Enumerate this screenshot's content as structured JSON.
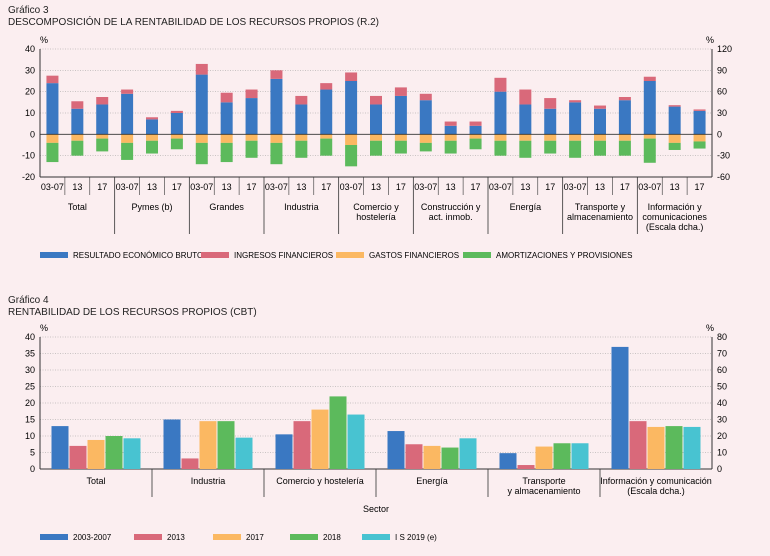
{
  "chart3": {
    "label": "Gráfico 3",
    "title": "DESCOMPOSICIÓN DE LA RENTABILIDAD DE LOS RECURSOS PROPIOS (R.2)",
    "left_unit": "%",
    "right_unit": "%"
  },
  "chart4": {
    "label": "Gráfico 4",
    "title": "RENTABILIDAD DE LOS RECURSOS PROPIOS (CBT)",
    "left_unit": "%",
    "right_unit": "%"
  },
  "colors": {
    "blue": "#3a78c2",
    "red": "#d9697a",
    "orange": "#fbb862",
    "green": "#5cba5c",
    "cyan": "#48c3d1",
    "axis": "#333333",
    "grid": "#999999"
  },
  "chart_data": [
    {
      "type": "bar",
      "stacked": true,
      "title": "DESCOMPOSICIÓN DE LA RENTABILIDAD DE LOS RECURSOS PROPIOS (R.2)",
      "ylim": [
        -20,
        40
      ],
      "yticks": [
        "40",
        "30",
        "20",
        "10",
        "0",
        "-10",
        "-20"
      ],
      "y2lim": [
        -60,
        120
      ],
      "y2ticks": [
        "120",
        "90",
        "60",
        "30",
        "0",
        "-30",
        "-60"
      ],
      "groups": [
        {
          "label": "Total",
          "labels": [
            "03-07",
            "13",
            "17"
          ],
          "right_axis": false
        },
        {
          "label": "Pymes (b)",
          "labels": [
            "03-07",
            "13",
            "17"
          ],
          "right_axis": false
        },
        {
          "label": "Grandes",
          "labels": [
            "03-07",
            "13",
            "17"
          ],
          "right_axis": false
        },
        {
          "label": "Industria",
          "labels": [
            "03-07",
            "13",
            "17"
          ],
          "right_axis": false
        },
        {
          "label": "Comercio y hostelería",
          "labels": [
            "03-07",
            "13",
            "17"
          ],
          "right_axis": false
        },
        {
          "label": "Construcción y act. inmob.",
          "labels": [
            "03-07",
            "13",
            "17"
          ],
          "right_axis": false
        },
        {
          "label": "Energía",
          "labels": [
            "03-07",
            "13",
            "17"
          ],
          "right_axis": false
        },
        {
          "label": "Transporte y almacenamiento",
          "labels": [
            "03-07",
            "13",
            "17"
          ],
          "right_axis": false
        },
        {
          "label": "Información y comunicaciones (Escala dcha.)",
          "labels": [
            "03-07",
            "13",
            "17"
          ],
          "right_axis": true
        }
      ],
      "series": [
        {
          "name": "RESULTADO ECONÓMICO BRUTO",
          "color": "#3a78c2",
          "values": [
            24,
            12,
            14,
            19,
            7,
            10,
            28,
            15,
            17,
            26,
            14,
            21,
            25,
            14,
            18,
            16,
            4,
            4,
            20,
            14,
            12,
            15,
            12,
            16,
            75,
            39,
            33
          ]
        },
        {
          "name": "INGRESOS FINANCIEROS",
          "color": "#d9697a",
          "values": [
            3.5,
            3.5,
            3.5,
            2,
            1,
            1,
            5,
            4.5,
            4,
            4,
            4,
            3,
            4,
            4,
            4,
            3,
            2,
            2,
            6.5,
            7,
            5,
            1,
            1.5,
            1.5,
            6,
            2,
            2
          ]
        },
        {
          "name": "GASTOS FINANCIEROS",
          "color": "#fbb862",
          "values": [
            -4,
            -3,
            -2,
            -4,
            -3,
            -2,
            -4,
            -4,
            -3,
            -4,
            -3,
            -2,
            -5,
            -3,
            -3,
            -4,
            -3,
            -2,
            -3,
            -3,
            -3,
            -3,
            -3,
            -3,
            -6,
            -12,
            -10
          ]
        },
        {
          "name": "AMORTIZACIONES Y PROVISIONES",
          "color": "#5cba5c",
          "values": [
            -9,
            -7,
            -6,
            -8,
            -6,
            -5,
            -10,
            -9,
            -8,
            -10,
            -8,
            -8,
            -10,
            -7,
            -6,
            -4,
            -6,
            -5,
            -7,
            -8,
            -6,
            -8,
            -7,
            -7,
            -34,
            -10,
            -10
          ]
        }
      ]
    },
    {
      "type": "bar",
      "title": "RENTABILIDAD DE LOS RECURSOS PROPIOS (CBT)",
      "xlabel": "Sector",
      "ylim": [
        0,
        40
      ],
      "yticks": [
        "40",
        "35",
        "30",
        "25",
        "20",
        "15",
        "10",
        "5",
        "0"
      ],
      "y2lim": [
        0,
        80
      ],
      "y2ticks": [
        "80",
        "70",
        "60",
        "50",
        "40",
        "30",
        "20",
        "10",
        "0"
      ],
      "categories": [
        "Total",
        "Industria",
        "Comercio y hostelería",
        "Energía",
        "Transporte y almacenamiento",
        "Información y comunicación (Escala dcha.)"
      ],
      "category_lines": [
        [
          "Total"
        ],
        [
          "Industria"
        ],
        [
          "Comercio y hostelería"
        ],
        [
          "Energía"
        ],
        [
          "Transporte",
          "y almacenamiento"
        ],
        [
          "Información y comunicación",
          "(Escala dcha.)"
        ]
      ],
      "right_axis_category": 5,
      "series": [
        {
          "name": "2003-2007",
          "color": "#3a78c2",
          "values": [
            13,
            15,
            10.5,
            11.5,
            4.8,
            74
          ]
        },
        {
          "name": "2013",
          "color": "#d9697a",
          "values": [
            7,
            3.2,
            14.5,
            7.5,
            1.2,
            29
          ]
        },
        {
          "name": "2017",
          "color": "#fbb862",
          "values": [
            8.8,
            14.5,
            18,
            7,
            6.8,
            25.5
          ]
        },
        {
          "name": "2018",
          "color": "#5cba5c",
          "values": [
            10,
            14.5,
            22,
            6.5,
            7.8,
            26
          ]
        },
        {
          "name": "I S 2019 (e)",
          "color": "#48c3d1",
          "values": [
            9.3,
            9.5,
            16.5,
            9.3,
            7.8,
            25.5
          ]
        }
      ]
    }
  ]
}
